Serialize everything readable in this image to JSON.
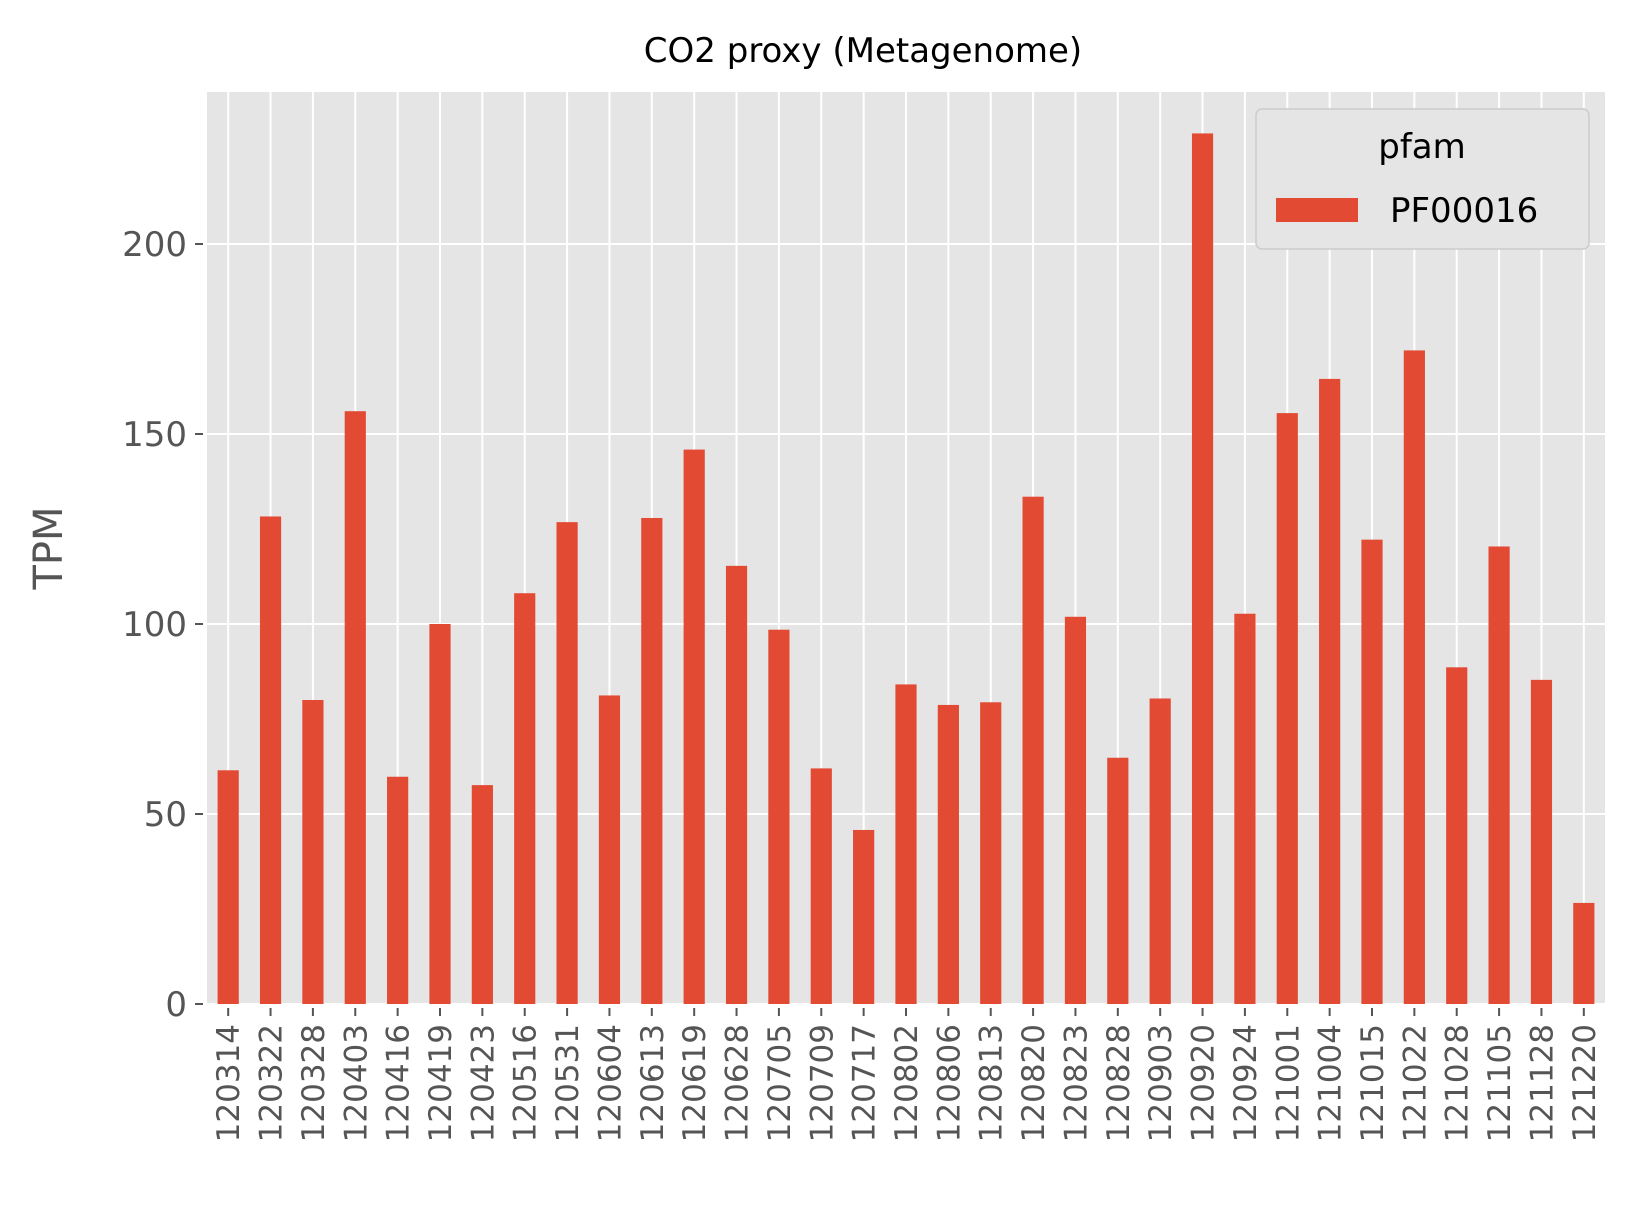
{
  "chart_data": {
    "type": "bar",
    "title": "CO2 proxy (Metagenome)",
    "xlabel": "",
    "ylabel": "TPM",
    "ylim": [
      0,
      240
    ],
    "yticks": [
      0,
      50,
      100,
      150,
      200
    ],
    "grid": true,
    "legend": {
      "title": "pfam",
      "placement": "top-right"
    },
    "categories": [
      "120314",
      "120322",
      "120328",
      "120403",
      "120416",
      "120419",
      "120423",
      "120516",
      "120531",
      "120604",
      "120613",
      "120619",
      "120628",
      "120705",
      "120709",
      "120717",
      "120802",
      "120806",
      "120813",
      "120820",
      "120823",
      "120828",
      "120903",
      "120920",
      "120924",
      "121001",
      "121004",
      "121015",
      "121022",
      "121028",
      "121105",
      "121128",
      "121220"
    ],
    "series": [
      {
        "name": "PF00016",
        "color": "#E24A33",
        "values": [
          61.5,
          128.3,
          80.0,
          156.0,
          59.8,
          100.0,
          57.6,
          108.1,
          126.8,
          81.2,
          127.9,
          145.9,
          115.3,
          98.5,
          62.0,
          45.8,
          84.1,
          78.7,
          79.4,
          133.5,
          101.9,
          64.8,
          80.4,
          229.1,
          102.7,
          155.5,
          164.5,
          122.2,
          172.0,
          88.6,
          120.4,
          85.3,
          26.6
        ]
      }
    ]
  },
  "colors": {
    "plot_background": "#E5E5E5",
    "grid": "#FFFFFF",
    "text": "#555555"
  }
}
